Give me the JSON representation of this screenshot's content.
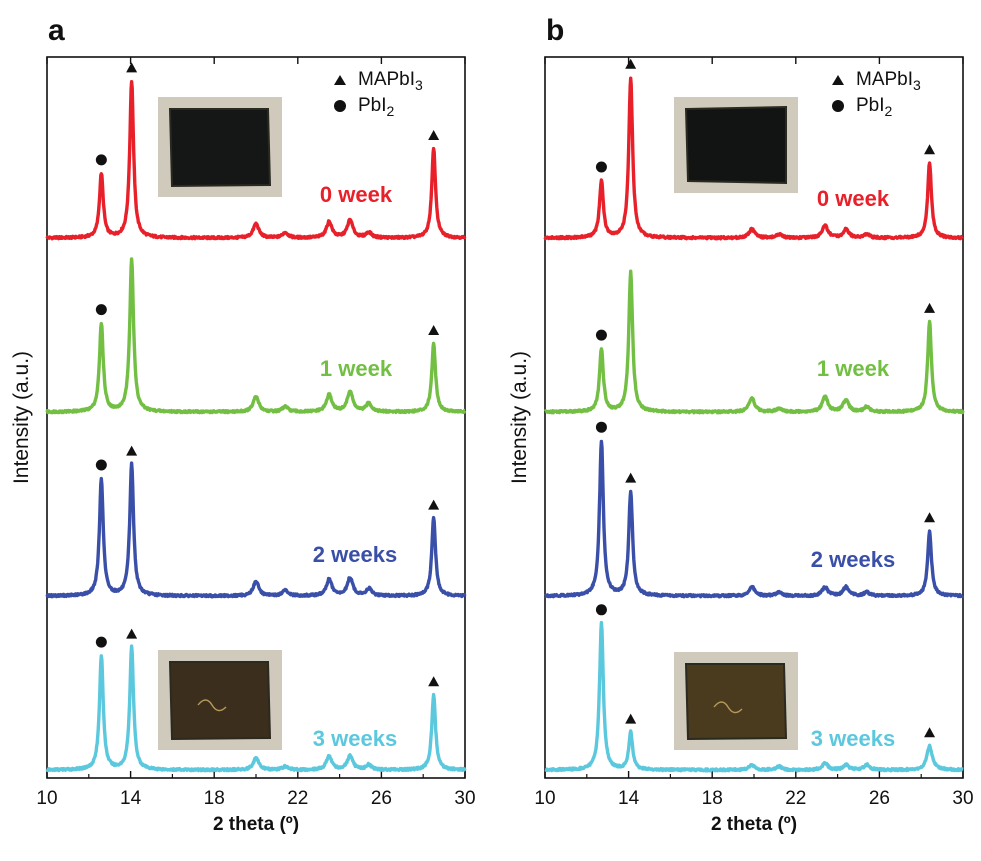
{
  "chart_data": [
    {
      "type": "line",
      "panel_label": "a",
      "xlabel": "2 theta (º)",
      "ylabel": "Intensity (a.u.)",
      "xlim": [
        10,
        30
      ],
      "xticks": [
        "10",
        "14",
        "18",
        "22",
        "26",
        "30"
      ],
      "legend": [
        {
          "marker": "triangle",
          "label": "MAPbI",
          "sub": "3"
        },
        {
          "marker": "circle",
          "label": "PbI",
          "sub": "2"
        }
      ],
      "series": [
        {
          "name": "0 week",
          "color": "#e8202a",
          "peaks": [
            {
              "x": 12.6,
              "height": 0.36,
              "marker": "circle"
            },
            {
              "x": 14.05,
              "height": 0.88,
              "marker": "triangle"
            },
            {
              "x": 20.0,
              "height": 0.08
            },
            {
              "x": 21.4,
              "height": 0.03
            },
            {
              "x": 23.5,
              "height": 0.09
            },
            {
              "x": 24.5,
              "height": 0.1
            },
            {
              "x": 25.4,
              "height": 0.03
            },
            {
              "x": 28.5,
              "height": 0.5,
              "marker": "triangle"
            }
          ]
        },
        {
          "name": "1 week",
          "color": "#72bf44",
          "peaks": [
            {
              "x": 12.6,
              "height": 0.52,
              "marker": "circle"
            },
            {
              "x": 14.05,
              "height": 0.9
            },
            {
              "x": 20.0,
              "height": 0.09
            },
            {
              "x": 21.4,
              "height": 0.03
            },
            {
              "x": 23.5,
              "height": 0.1
            },
            {
              "x": 24.5,
              "height": 0.12
            },
            {
              "x": 25.4,
              "height": 0.05
            },
            {
              "x": 28.5,
              "height": 0.4,
              "marker": "triangle"
            }
          ]
        },
        {
          "name": "2 weeks",
          "color": "#3a4fa8",
          "peaks": [
            {
              "x": 12.6,
              "height": 0.65,
              "marker": "circle"
            },
            {
              "x": 14.05,
              "height": 0.73,
              "marker": "triangle"
            },
            {
              "x": 20.0,
              "height": 0.08
            },
            {
              "x": 21.4,
              "height": 0.03
            },
            {
              "x": 23.5,
              "height": 0.09
            },
            {
              "x": 24.5,
              "height": 0.1
            },
            {
              "x": 25.4,
              "height": 0.04
            },
            {
              "x": 28.5,
              "height": 0.43,
              "marker": "triangle"
            }
          ]
        },
        {
          "name": "3 weeks",
          "color": "#5bc8de",
          "peaks": [
            {
              "x": 12.6,
              "height": 0.67,
              "marker": "circle"
            },
            {
              "x": 14.05,
              "height": 0.72,
              "marker": "triangle"
            },
            {
              "x": 20.0,
              "height": 0.07
            },
            {
              "x": 21.4,
              "height": 0.02
            },
            {
              "x": 23.5,
              "height": 0.08
            },
            {
              "x": 24.5,
              "height": 0.08
            },
            {
              "x": 25.4,
              "height": 0.03
            },
            {
              "x": 28.5,
              "height": 0.44,
              "marker": "triangle"
            }
          ]
        }
      ],
      "insets": [
        {
          "series": "0 week",
          "film_color": "#141716"
        },
        {
          "series": "3 weeks",
          "film_color": "#3c2e1c"
        }
      ]
    },
    {
      "type": "line",
      "panel_label": "b",
      "xlabel": "2 theta (º)",
      "ylabel": "Intensity (a.u.)",
      "xlim": [
        10,
        30
      ],
      "xticks": [
        "10",
        "14",
        "18",
        "22",
        "26",
        "30"
      ],
      "legend": [
        {
          "marker": "triangle",
          "label": "MAPbI",
          "sub": "3"
        },
        {
          "marker": "circle",
          "label": "PbI",
          "sub": "2"
        }
      ],
      "series": [
        {
          "name": "0 week",
          "color": "#e8202a",
          "peaks": [
            {
              "x": 12.7,
              "height": 0.32,
              "marker": "circle"
            },
            {
              "x": 14.1,
              "height": 0.9,
              "marker": "triangle"
            },
            {
              "x": 19.9,
              "height": 0.05
            },
            {
              "x": 21.2,
              "height": 0.02
            },
            {
              "x": 23.4,
              "height": 0.07
            },
            {
              "x": 24.4,
              "height": 0.05
            },
            {
              "x": 25.4,
              "height": 0.02
            },
            {
              "x": 28.4,
              "height": 0.42,
              "marker": "triangle"
            }
          ]
        },
        {
          "name": "1 week",
          "color": "#72bf44",
          "peaks": [
            {
              "x": 12.7,
              "height": 0.37,
              "marker": "circle"
            },
            {
              "x": 14.1,
              "height": 0.82
            },
            {
              "x": 19.9,
              "height": 0.08
            },
            {
              "x": 21.2,
              "height": 0.02
            },
            {
              "x": 23.4,
              "height": 0.09
            },
            {
              "x": 24.4,
              "height": 0.07
            },
            {
              "x": 25.4,
              "height": 0.03
            },
            {
              "x": 28.4,
              "height": 0.53,
              "marker": "triangle"
            }
          ]
        },
        {
          "name": "2 weeks",
          "color": "#3a4fa8",
          "peaks": [
            {
              "x": 12.7,
              "height": 0.86,
              "marker": "circle"
            },
            {
              "x": 14.1,
              "height": 0.58,
              "marker": "triangle"
            },
            {
              "x": 19.9,
              "height": 0.05
            },
            {
              "x": 21.2,
              "height": 0.02
            },
            {
              "x": 23.4,
              "height": 0.05
            },
            {
              "x": 24.4,
              "height": 0.05
            },
            {
              "x": 25.4,
              "height": 0.02
            },
            {
              "x": 28.4,
              "height": 0.36,
              "marker": "triangle"
            }
          ]
        },
        {
          "name": "3 weeks",
          "color": "#5bc8de",
          "peaks": [
            {
              "x": 12.7,
              "height": 0.86,
              "marker": "circle"
            },
            {
              "x": 14.1,
              "height": 0.22,
              "marker": "triangle"
            },
            {
              "x": 19.9,
              "height": 0.03
            },
            {
              "x": 21.2,
              "height": 0.02
            },
            {
              "x": 23.4,
              "height": 0.04
            },
            {
              "x": 24.4,
              "height": 0.03
            },
            {
              "x": 25.4,
              "height": 0.03
            },
            {
              "x": 28.4,
              "height": 0.14,
              "marker": "triangle"
            }
          ]
        }
      ],
      "insets": [
        {
          "series": "0 week",
          "film_color": "#121414"
        },
        {
          "series": "3 weeks",
          "film_color": "#4a3a1e"
        }
      ]
    }
  ]
}
